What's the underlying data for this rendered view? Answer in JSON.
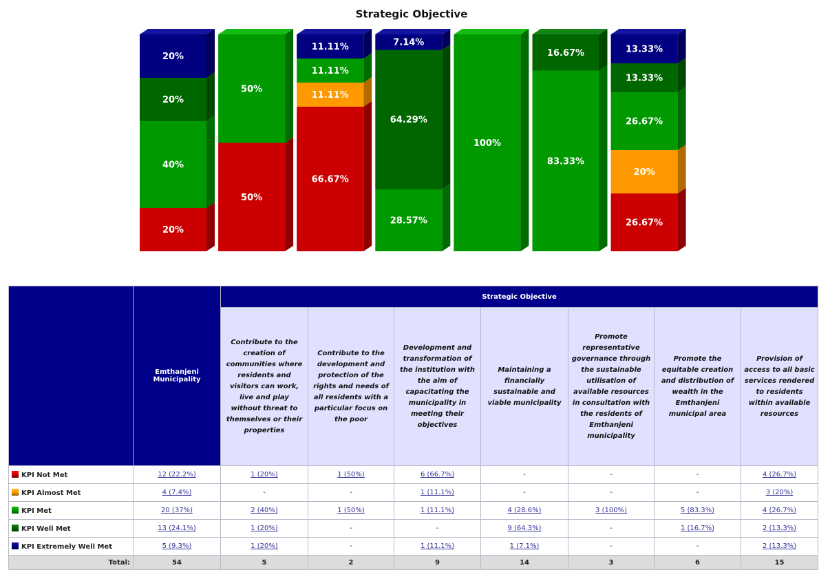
{
  "chart_data": {
    "type": "bar",
    "stacked": true,
    "title": "Strategic Objective",
    "series": [
      {
        "name": "KPI Not Met",
        "color": "#cc0000",
        "values": [
          20,
          50,
          66.67,
          null,
          null,
          null,
          26.67
        ],
        "value_labels": [
          "20%",
          "50%",
          "66.67%",
          null,
          null,
          null,
          "26.67%"
        ]
      },
      {
        "name": "KPI Almost Met",
        "color": "#ff9900",
        "values": [
          null,
          null,
          11.11,
          null,
          null,
          null,
          20
        ],
        "value_labels": [
          null,
          null,
          "11.11%",
          null,
          null,
          null,
          "20%"
        ]
      },
      {
        "name": "KPI Met",
        "color": "#009900",
        "values": [
          40,
          50,
          11.11,
          28.57,
          100,
          83.33,
          26.67
        ],
        "value_labels": [
          "40%",
          "50%",
          "11.11%",
          "28.57%",
          "100%",
          "83.33%",
          "26.67%"
        ]
      },
      {
        "name": "KPI Well Met",
        "color": "#006600",
        "values": [
          20,
          null,
          null,
          64.29,
          null,
          16.67,
          13.33
        ],
        "value_labels": [
          "20%",
          null,
          null,
          "64.29%",
          null,
          "16.67%",
          "13.33%"
        ]
      },
      {
        "name": "KPI Extremely Well Met",
        "color": "#000080",
        "values": [
          20,
          null,
          11.11,
          7.14,
          null,
          null,
          13.33
        ],
        "value_labels": [
          "20%",
          null,
          "11.11%",
          "7.14%",
          null,
          null,
          "13.33%"
        ]
      }
    ]
  },
  "table": {
    "group_header": "Strategic Objective",
    "columns": [
      "Emthanjeni Municipality",
      "Contribute to the creation of communities where residents and visitors can work, live and play without threat to themselves or their properties",
      "Contribute to the development and protection of the rights and needs of all residents with a particular focus on the poor",
      "Development and transformation of the institution with the aim of capacitating the municipality in meeting their objectives",
      "Maintaining a financially sustainable and viable municipality",
      "Promote representative governance through the sustainable utilisation of available resources in consultation with the residents of Emthanjeni municipality",
      "Promote the equitable creation and distribution of wealth in the Emthanjeni municipal area",
      "Provision of access to all basic services rendered to residents within available resources"
    ],
    "rows": [
      [
        "12 (22.2%)",
        "1 (20%)",
        "1 (50%)",
        "6 (66.7%)",
        "-",
        "-",
        "-",
        "4 (26.7%)"
      ],
      [
        "4 (7.4%)",
        "-",
        "-",
        "1 (11.1%)",
        "-",
        "-",
        "-",
        "3 (20%)"
      ],
      [
        "20 (37%)",
        "2 (40%)",
        "1 (50%)",
        "1 (11.1%)",
        "4 (28.6%)",
        "3 (100%)",
        "5 (83.3%)",
        "4 (26.7%)"
      ],
      [
        "13 (24.1%)",
        "1 (20%)",
        "-",
        "-",
        "9 (64.3%)",
        "-",
        "1 (16.7%)",
        "2 (13.3%)"
      ],
      [
        "5 (9.3%)",
        "1 (20%)",
        "-",
        "1 (11.1%)",
        "1 (7.1%)",
        "-",
        "-",
        "2 (13.3%)"
      ]
    ],
    "total_label": "Total:",
    "totals": [
      54,
      5,
      2,
      9,
      14,
      3,
      6,
      15
    ]
  }
}
